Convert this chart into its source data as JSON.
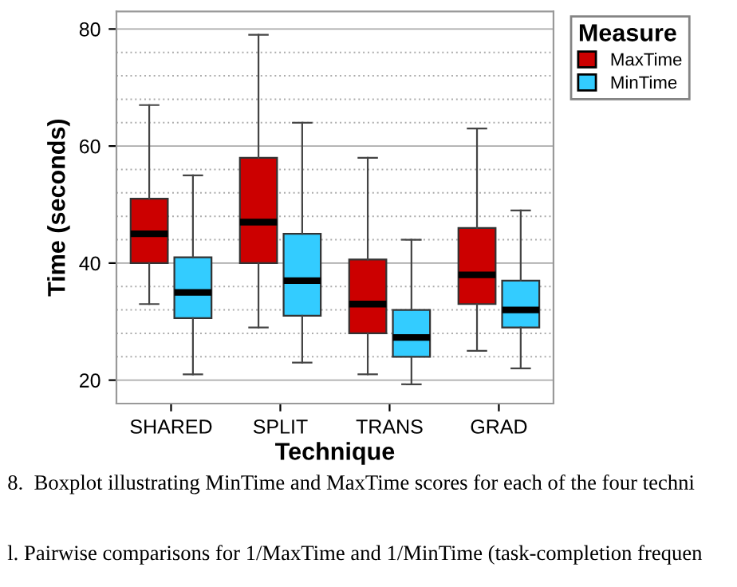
{
  "chart_data": {
    "type": "box",
    "xlabel": "Technique",
    "ylabel": "Time (seconds)",
    "legend_title": "Measure",
    "legend": "top right",
    "categories": [
      "SHARED",
      "SPLIT",
      "TRANS",
      "GRAD"
    ],
    "series": [
      {
        "name": "MaxTime",
        "color": "#cc0000",
        "boxes": [
          {
            "low": 33,
            "q1": 40,
            "median": 45,
            "q3": 51,
            "high": 67
          },
          {
            "low": 29,
            "q1": 40,
            "median": 47,
            "q3": 58,
            "high": 79
          },
          {
            "low": 21,
            "q1": 28,
            "median": 33,
            "q3": 40.6,
            "high": 58
          },
          {
            "low": 25,
            "q1": 33,
            "median": 38,
            "q3": 46,
            "high": 63
          }
        ]
      },
      {
        "name": "MinTime",
        "color": "#33ccff",
        "boxes": [
          {
            "low": 21,
            "q1": 30.6,
            "median": 35,
            "q3": 41,
            "high": 55
          },
          {
            "low": 23,
            "q1": 31,
            "median": 37,
            "q3": 45,
            "high": 64
          },
          {
            "low": 19.3,
            "q1": 24,
            "median": 27.3,
            "q3": 32,
            "high": 44
          },
          {
            "low": 22,
            "q1": 29,
            "median": 32,
            "q3": 37,
            "high": 49
          }
        ]
      }
    ],
    "ylim": [
      16,
      83
    ],
    "yticks": [
      20,
      {
        "value": 24,
        "label": null
      },
      {
        "value": 28,
        "label": null
      },
      {
        "value": 32,
        "label": null
      },
      {
        "value": 36,
        "label": null
      },
      40,
      {
        "value": 44,
        "label": null
      },
      {
        "value": 48,
        "label": null
      },
      {
        "value": 52,
        "label": null
      },
      {
        "value": 56,
        "label": null
      },
      60,
      {
        "value": 64,
        "label": null
      },
      {
        "value": 68,
        "label": null
      },
      {
        "value": 72,
        "label": null
      },
      {
        "value": 76,
        "label": null
      },
      80
    ],
    "grid": "y",
    "annotations": [
      "8.  Boxplot illustrating MinTime and MaxTime scores for each of the four techni",
      "l. Pairwise comparisons for 1/MaxTime and 1/MinTime (task-completion frequen"
    ]
  }
}
